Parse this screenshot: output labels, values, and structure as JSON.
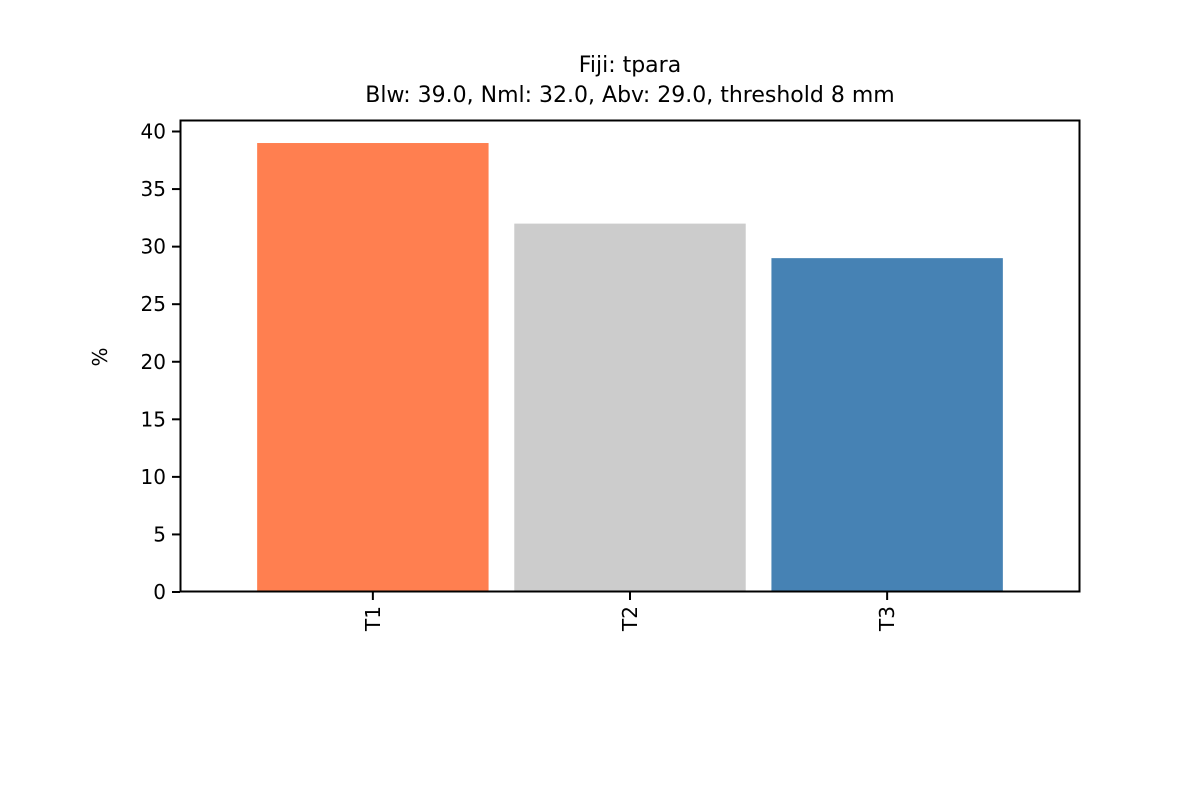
{
  "chart_data": {
    "type": "bar",
    "title": "Fiji: tpara",
    "subtitle": "Blw: 39.0, Nml: 32.0, Abv: 29.0, threshold 8 mm",
    "xlabel": "",
    "ylabel": "%",
    "categories": [
      "T1",
      "T2",
      "T3"
    ],
    "values": [
      39.0,
      32.0,
      29.0
    ],
    "colors": [
      "#ff7f50",
      "#cccccc",
      "#4682b4"
    ],
    "ylim": [
      0,
      41
    ],
    "yticks": [
      0,
      5,
      10,
      15,
      20,
      25,
      30,
      35,
      40
    ],
    "grid": false,
    "legend": "none"
  }
}
